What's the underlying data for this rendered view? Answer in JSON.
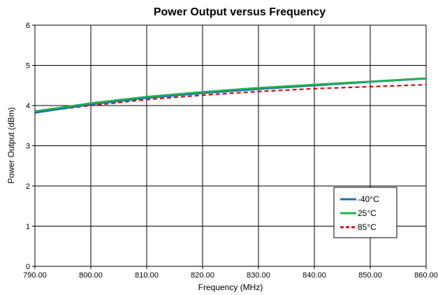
{
  "chart_data": {
    "type": "line",
    "title": "Power Output versus Frequency",
    "xlabel": "Frequency (MHz)",
    "ylabel": "Power Output (dBm)",
    "xlim": [
      790,
      860
    ],
    "ylim": [
      0,
      6
    ],
    "x_ticks": [
      "790.00",
      "800.00",
      "810.00",
      "820.00",
      "830.00",
      "840.00",
      "850.00",
      "860.00"
    ],
    "y_ticks": [
      "0",
      "1",
      "2",
      "3",
      "4",
      "5",
      "6"
    ],
    "grid": true,
    "legend_position": "bottom-right",
    "x": [
      790,
      800,
      810,
      820,
      830,
      840,
      850,
      860
    ],
    "series": [
      {
        "name": "-40°C",
        "color": "#1f6fb4",
        "dash": "solid",
        "values": [
          3.82,
          4.03,
          4.19,
          4.31,
          4.41,
          4.5,
          4.59,
          4.67
        ]
      },
      {
        "name": "25°C",
        "color": "#22b14c",
        "dash": "solid",
        "values": [
          3.86,
          4.06,
          4.22,
          4.34,
          4.44,
          4.52,
          4.6,
          4.68
        ]
      },
      {
        "name": "85°C",
        "color": "#c0141c",
        "dash": "dashed",
        "values": [
          3.84,
          4.0,
          4.15,
          4.26,
          4.35,
          4.42,
          4.47,
          4.52
        ]
      }
    ]
  }
}
